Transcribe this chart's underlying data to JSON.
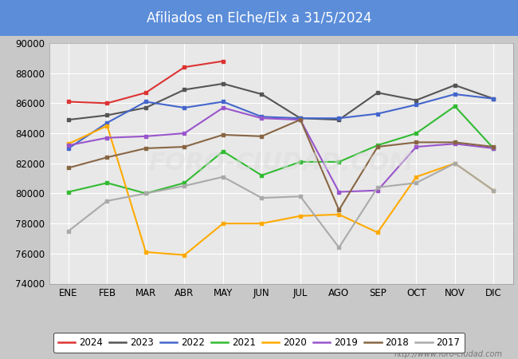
{
  "title": "Afiliados en Elche/Elx a 31/5/2024",
  "title_bg_color": "#5b8dd9",
  "title_text_color": "#ffffff",
  "ylim": [
    74000,
    90000
  ],
  "yticks": [
    74000,
    76000,
    78000,
    80000,
    82000,
    84000,
    86000,
    88000,
    90000
  ],
  "months": [
    "ENE",
    "FEB",
    "MAR",
    "ABR",
    "MAY",
    "JUN",
    "JUL",
    "AGO",
    "SEP",
    "OCT",
    "NOV",
    "DIC"
  ],
  "fig_bg_color": "#c8c8c8",
  "plot_bg_color": "#e8e8e8",
  "watermark": "http://www.foro-ciudad.com",
  "series": {
    "2024": {
      "color": "#dd3333",
      "data": [
        86100,
        86000,
        86700,
        88400,
        88800,
        null,
        null,
        null,
        null,
        null,
        null,
        null
      ]
    },
    "2023": {
      "color": "#555555",
      "data": [
        84900,
        85200,
        85700,
        86900,
        87300,
        86600,
        85000,
        84900,
        86700,
        86200,
        87200,
        86300
      ]
    },
    "2022": {
      "color": "#4466cc",
      "data": [
        83000,
        84700,
        86100,
        85700,
        86100,
        85100,
        85000,
        85000,
        85300,
        85900,
        86600,
        86300
      ]
    },
    "2021": {
      "color": "#33bb33",
      "data": [
        80100,
        80700,
        80000,
        80700,
        82800,
        81200,
        82100,
        82100,
        83200,
        84000,
        85800,
        83000
      ]
    },
    "2020": {
      "color": "#ffaa00",
      "data": [
        83300,
        84500,
        76100,
        75900,
        78000,
        78000,
        78500,
        78600,
        77400,
        81100,
        82000,
        80200
      ]
    },
    "2019": {
      "color": "#9955cc",
      "data": [
        83200,
        83700,
        83800,
        84000,
        85700,
        85000,
        84900,
        80100,
        80200,
        83100,
        83300,
        83000
      ]
    },
    "2018": {
      "color": "#886644",
      "data": [
        81700,
        82400,
        83000,
        83100,
        83900,
        83800,
        84900,
        78900,
        83100,
        83400,
        83400,
        83100
      ]
    },
    "2017": {
      "color": "#aaaaaa",
      "data": [
        77500,
        79500,
        80000,
        80500,
        81100,
        79700,
        79800,
        76400,
        80400,
        80700,
        82000,
        80200
      ]
    }
  },
  "legend_order": [
    "2024",
    "2023",
    "2022",
    "2021",
    "2020",
    "2019",
    "2018",
    "2017"
  ]
}
